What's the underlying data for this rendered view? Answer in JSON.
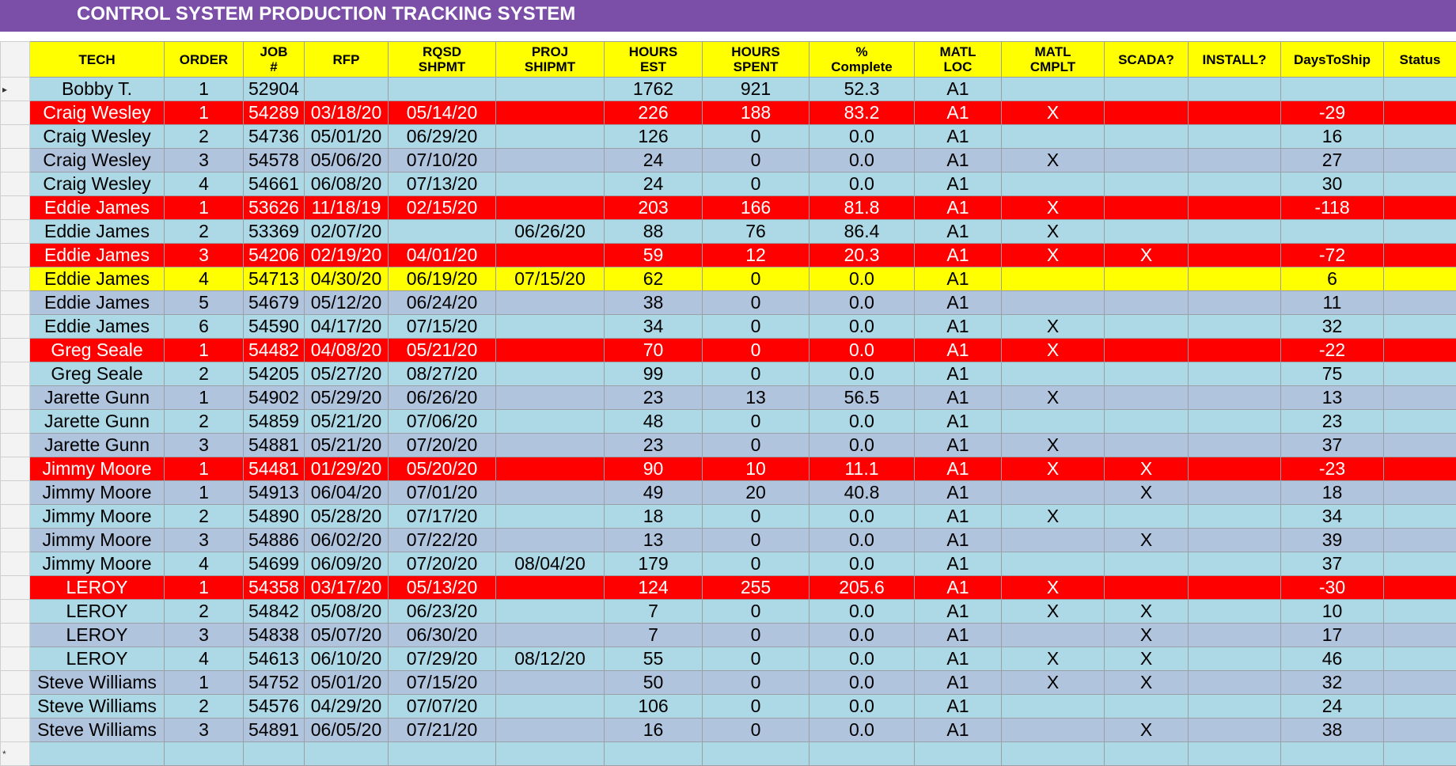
{
  "title": "CONTROL SYSTEM PRODUCTION TRACKING SYSTEM",
  "colors": {
    "title_bar": "#7b4fa8",
    "header": "#ffff00",
    "row_light_blue": "#add8e6",
    "row_steel_blue": "#b0c4de",
    "row_overdue": "#ff0000",
    "row_warning": "#ffff00"
  },
  "columns": [
    {
      "line1": "TECH",
      "line2": ""
    },
    {
      "line1": "ORDER",
      "line2": ""
    },
    {
      "line1": "JOB",
      "line2": "#"
    },
    {
      "line1": "RFP",
      "line2": ""
    },
    {
      "line1": "RQSD",
      "line2": "SHPMT"
    },
    {
      "line1": "PROJ",
      "line2": "SHIPMT"
    },
    {
      "line1": "HOURS",
      "line2": "EST"
    },
    {
      "line1": "HOURS",
      "line2": "SPENT"
    },
    {
      "line1": "%",
      "line2": "Complete"
    },
    {
      "line1": "MATL",
      "line2": "LOC"
    },
    {
      "line1": "MATL",
      "line2": "CMPLT"
    },
    {
      "line1": "SCADA?",
      "line2": ""
    },
    {
      "line1": "INSTALL?",
      "line2": ""
    },
    {
      "line1": "DaysToShip",
      "line2": ""
    },
    {
      "line1": "Status",
      "line2": ""
    }
  ],
  "current_row_marker": "▸",
  "new_row_marker": "*",
  "rows": [
    {
      "style": "blue",
      "tech": "Bobby T.",
      "order": "1",
      "job": "52904",
      "rfp": "",
      "rqsd": "",
      "proj": "",
      "hours_est": "1762",
      "hours_spent": "921",
      "pct": "52.3",
      "matl_loc": "A1",
      "matl_cmplt": "",
      "scada": "",
      "install": "",
      "days": "",
      "status": ""
    },
    {
      "style": "red",
      "tech": "Craig Wesley",
      "order": "1",
      "job": "54289",
      "rfp": "03/18/20",
      "rqsd": "05/14/20",
      "proj": "",
      "hours_est": "226",
      "hours_spent": "188",
      "pct": "83.2",
      "matl_loc": "A1",
      "matl_cmplt": "X",
      "scada": "",
      "install": "",
      "days": "-29",
      "status": ""
    },
    {
      "style": "blue",
      "tech": "Craig Wesley",
      "order": "2",
      "job": "54736",
      "rfp": "05/01/20",
      "rqsd": "06/29/20",
      "proj": "",
      "hours_est": "126",
      "hours_spent": "0",
      "pct": "0.0",
      "matl_loc": "A1",
      "matl_cmplt": "",
      "scada": "",
      "install": "",
      "days": "16",
      "status": ""
    },
    {
      "style": "gray",
      "tech": "Craig Wesley",
      "order": "3",
      "job": "54578",
      "rfp": "05/06/20",
      "rqsd": "07/10/20",
      "proj": "",
      "hours_est": "24",
      "hours_spent": "0",
      "pct": "0.0",
      "matl_loc": "A1",
      "matl_cmplt": "X",
      "scada": "",
      "install": "",
      "days": "27",
      "status": ""
    },
    {
      "style": "blue",
      "tech": "Craig Wesley",
      "order": "4",
      "job": "54661",
      "rfp": "06/08/20",
      "rqsd": "07/13/20",
      "proj": "",
      "hours_est": "24",
      "hours_spent": "0",
      "pct": "0.0",
      "matl_loc": "A1",
      "matl_cmplt": "",
      "scada": "",
      "install": "",
      "days": "30",
      "status": ""
    },
    {
      "style": "red",
      "tech": "Eddie James",
      "order": "1",
      "job": "53626",
      "rfp": "11/18/19",
      "rqsd": "02/15/20",
      "proj": "",
      "hours_est": "203",
      "hours_spent": "166",
      "pct": "81.8",
      "matl_loc": "A1",
      "matl_cmplt": "X",
      "scada": "",
      "install": "",
      "days": "-118",
      "status": ""
    },
    {
      "style": "blue",
      "tech": "Eddie James",
      "order": "2",
      "job": "53369",
      "rfp": "02/07/20",
      "rqsd": "",
      "proj": "06/26/20",
      "hours_est": "88",
      "hours_spent": "76",
      "pct": "86.4",
      "matl_loc": "A1",
      "matl_cmplt": "X",
      "scada": "",
      "install": "",
      "days": "",
      "status": ""
    },
    {
      "style": "red",
      "tech": "Eddie James",
      "order": "3",
      "job": "54206",
      "rfp": "02/19/20",
      "rqsd": "04/01/20",
      "proj": "",
      "hours_est": "59",
      "hours_spent": "12",
      "pct": "20.3",
      "matl_loc": "A1",
      "matl_cmplt": "X",
      "scada": "X",
      "install": "",
      "days": "-72",
      "status": ""
    },
    {
      "style": "yellow",
      "tech": "Eddie James",
      "order": "4",
      "job": "54713",
      "rfp": "04/30/20",
      "rqsd": "06/19/20",
      "proj": "07/15/20",
      "hours_est": "62",
      "hours_spent": "0",
      "pct": "0.0",
      "matl_loc": "A1",
      "matl_cmplt": "",
      "scada": "",
      "install": "",
      "days": "6",
      "status": ""
    },
    {
      "style": "gray",
      "tech": "Eddie James",
      "order": "5",
      "job": "54679",
      "rfp": "05/12/20",
      "rqsd": "06/24/20",
      "proj": "",
      "hours_est": "38",
      "hours_spent": "0",
      "pct": "0.0",
      "matl_loc": "A1",
      "matl_cmplt": "",
      "scada": "",
      "install": "",
      "days": "11",
      "status": ""
    },
    {
      "style": "blue",
      "tech": "Eddie James",
      "order": "6",
      "job": "54590",
      "rfp": "04/17/20",
      "rqsd": "07/15/20",
      "proj": "",
      "hours_est": "34",
      "hours_spent": "0",
      "pct": "0.0",
      "matl_loc": "A1",
      "matl_cmplt": "X",
      "scada": "",
      "install": "",
      "days": "32",
      "status": ""
    },
    {
      "style": "red",
      "tech": "Greg Seale",
      "order": "1",
      "job": "54482",
      "rfp": "04/08/20",
      "rqsd": "05/21/20",
      "proj": "",
      "hours_est": "70",
      "hours_spent": "0",
      "pct": "0.0",
      "matl_loc": "A1",
      "matl_cmplt": "X",
      "scada": "",
      "install": "",
      "days": "-22",
      "status": ""
    },
    {
      "style": "blue",
      "tech": "Greg Seale",
      "order": "2",
      "job": "54205",
      "rfp": "05/27/20",
      "rqsd": "08/27/20",
      "proj": "",
      "hours_est": "99",
      "hours_spent": "0",
      "pct": "0.0",
      "matl_loc": "A1",
      "matl_cmplt": "",
      "scada": "",
      "install": "",
      "days": "75",
      "status": ""
    },
    {
      "style": "gray",
      "tech": "Jarette Gunn",
      "order": "1",
      "job": "54902",
      "rfp": "05/29/20",
      "rqsd": "06/26/20",
      "proj": "",
      "hours_est": "23",
      "hours_spent": "13",
      "pct": "56.5",
      "matl_loc": "A1",
      "matl_cmplt": "X",
      "scada": "",
      "install": "",
      "days": "13",
      "status": ""
    },
    {
      "style": "blue",
      "tech": "Jarette Gunn",
      "order": "2",
      "job": "54859",
      "rfp": "05/21/20",
      "rqsd": "07/06/20",
      "proj": "",
      "hours_est": "48",
      "hours_spent": "0",
      "pct": "0.0",
      "matl_loc": "A1",
      "matl_cmplt": "",
      "scada": "",
      "install": "",
      "days": "23",
      "status": ""
    },
    {
      "style": "gray",
      "tech": "Jarette Gunn",
      "order": "3",
      "job": "54881",
      "rfp": "05/21/20",
      "rqsd": "07/20/20",
      "proj": "",
      "hours_est": "23",
      "hours_spent": "0",
      "pct": "0.0",
      "matl_loc": "A1",
      "matl_cmplt": "X",
      "scada": "",
      "install": "",
      "days": "37",
      "status": ""
    },
    {
      "style": "red",
      "tech": "Jimmy Moore",
      "order": "1",
      "job": "54481",
      "rfp": "01/29/20",
      "rqsd": "05/20/20",
      "proj": "",
      "hours_est": "90",
      "hours_spent": "10",
      "pct": "11.1",
      "matl_loc": "A1",
      "matl_cmplt": "X",
      "scada": "X",
      "install": "",
      "days": "-23",
      "status": ""
    },
    {
      "style": "gray",
      "tech": "Jimmy Moore",
      "order": "1",
      "job": "54913",
      "rfp": "06/04/20",
      "rqsd": "07/01/20",
      "proj": "",
      "hours_est": "49",
      "hours_spent": "20",
      "pct": "40.8",
      "matl_loc": "A1",
      "matl_cmplt": "",
      "scada": "X",
      "install": "",
      "days": "18",
      "status": ""
    },
    {
      "style": "blue",
      "tech": "Jimmy Moore",
      "order": "2",
      "job": "54890",
      "rfp": "05/28/20",
      "rqsd": "07/17/20",
      "proj": "",
      "hours_est": "18",
      "hours_spent": "0",
      "pct": "0.0",
      "matl_loc": "A1",
      "matl_cmplt": "X",
      "scada": "",
      "install": "",
      "days": "34",
      "status": ""
    },
    {
      "style": "gray",
      "tech": "Jimmy Moore",
      "order": "3",
      "job": "54886",
      "rfp": "06/02/20",
      "rqsd": "07/22/20",
      "proj": "",
      "hours_est": "13",
      "hours_spent": "0",
      "pct": "0.0",
      "matl_loc": "A1",
      "matl_cmplt": "",
      "scada": "X",
      "install": "",
      "days": "39",
      "status": ""
    },
    {
      "style": "blue",
      "tech": "Jimmy Moore",
      "order": "4",
      "job": "54699",
      "rfp": "06/09/20",
      "rqsd": "07/20/20",
      "proj": "08/04/20",
      "hours_est": "179",
      "hours_spent": "0",
      "pct": "0.0",
      "matl_loc": "A1",
      "matl_cmplt": "",
      "scada": "",
      "install": "",
      "days": "37",
      "status": ""
    },
    {
      "style": "red",
      "tech": "LEROY",
      "order": "1",
      "job": "54358",
      "rfp": "03/17/20",
      "rqsd": "05/13/20",
      "proj": "",
      "hours_est": "124",
      "hours_spent": "255",
      "pct": "205.6",
      "matl_loc": "A1",
      "matl_cmplt": "X",
      "scada": "",
      "install": "",
      "days": "-30",
      "status": ""
    },
    {
      "style": "blue",
      "tech": "LEROY",
      "order": "2",
      "job": "54842",
      "rfp": "05/08/20",
      "rqsd": "06/23/20",
      "proj": "",
      "hours_est": "7",
      "hours_spent": "0",
      "pct": "0.0",
      "matl_loc": "A1",
      "matl_cmplt": "X",
      "scada": "X",
      "install": "",
      "days": "10",
      "status": ""
    },
    {
      "style": "gray",
      "tech": "LEROY",
      "order": "3",
      "job": "54838",
      "rfp": "05/07/20",
      "rqsd": "06/30/20",
      "proj": "",
      "hours_est": "7",
      "hours_spent": "0",
      "pct": "0.0",
      "matl_loc": "A1",
      "matl_cmplt": "",
      "scada": "X",
      "install": "",
      "days": "17",
      "status": ""
    },
    {
      "style": "blue",
      "tech": "LEROY",
      "order": "4",
      "job": "54613",
      "rfp": "06/10/20",
      "rqsd": "07/29/20",
      "proj": "08/12/20",
      "hours_est": "55",
      "hours_spent": "0",
      "pct": "0.0",
      "matl_loc": "A1",
      "matl_cmplt": "X",
      "scada": "X",
      "install": "",
      "days": "46",
      "status": ""
    },
    {
      "style": "gray",
      "tech": "Steve Williams",
      "order": "1",
      "job": "54752",
      "rfp": "05/01/20",
      "rqsd": "07/15/20",
      "proj": "",
      "hours_est": "50",
      "hours_spent": "0",
      "pct": "0.0",
      "matl_loc": "A1",
      "matl_cmplt": "X",
      "scada": "X",
      "install": "",
      "days": "32",
      "status": ""
    },
    {
      "style": "blue",
      "tech": "Steve Williams",
      "order": "2",
      "job": "54576",
      "rfp": "04/29/20",
      "rqsd": "07/07/20",
      "proj": "",
      "hours_est": "106",
      "hours_spent": "0",
      "pct": "0.0",
      "matl_loc": "A1",
      "matl_cmplt": "",
      "scada": "",
      "install": "",
      "days": "24",
      "status": ""
    },
    {
      "style": "gray",
      "tech": "Steve Williams",
      "order": "3",
      "job": "54891",
      "rfp": "06/05/20",
      "rqsd": "07/21/20",
      "proj": "",
      "hours_est": "16",
      "hours_spent": "0",
      "pct": "0.0",
      "matl_loc": "A1",
      "matl_cmplt": "",
      "scada": "X",
      "install": "",
      "days": "38",
      "status": ""
    }
  ]
}
